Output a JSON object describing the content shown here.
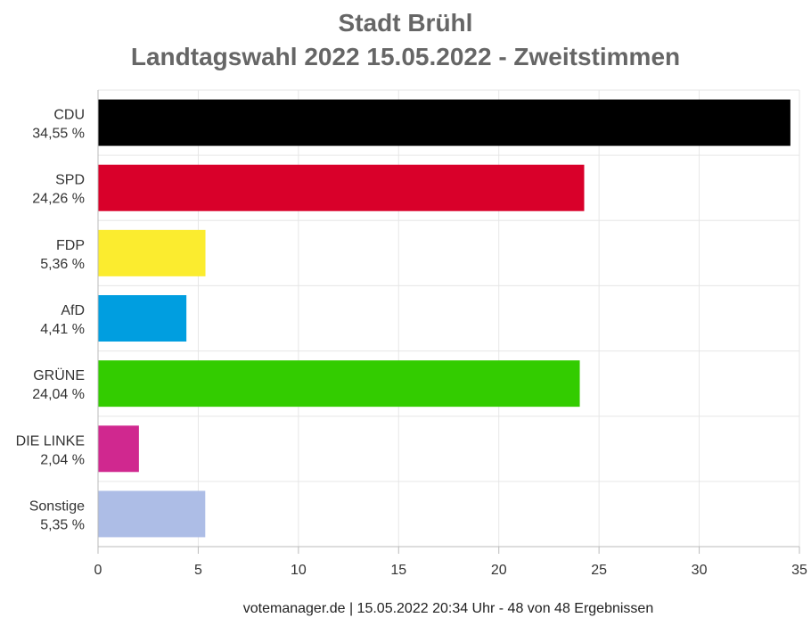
{
  "chart_data": {
    "type": "bar",
    "orientation": "horizontal",
    "title": "Stadt Brühl",
    "subtitle": "Landtagswahl 2022 15.05.2022  - Zweitstimmen",
    "categories": [
      "CDU",
      "SPD",
      "FDP",
      "AfD",
      "GRÜNE",
      "DIE LINKE",
      "Sonstige"
    ],
    "value_labels": [
      "34,55 %",
      "24,26 %",
      "5,36 %",
      "4,41 %",
      "24,04 %",
      "2,04 %",
      "5,35 %"
    ],
    "values": [
      34.55,
      24.26,
      5.36,
      4.41,
      24.04,
      2.04,
      5.35
    ],
    "colors": [
      "#000000",
      "#d9002a",
      "#fbec2f",
      "#009ee0",
      "#33cc00",
      "#d0288f",
      "#adbde6"
    ],
    "xlim": [
      0,
      35
    ],
    "xticks": [
      0,
      5,
      10,
      15,
      20,
      25,
      30,
      35
    ],
    "grid": true,
    "legend": "none"
  },
  "footer": "votemanager.de | 15.05.2022 20:34 Uhr - 48 von 48 Ergebnissen"
}
